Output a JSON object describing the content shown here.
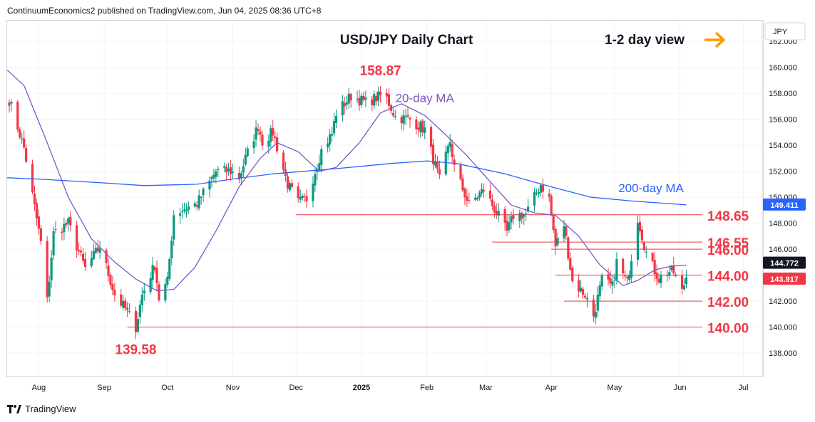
{
  "publisher_line": "ContinuumEconomics2 published on TradingView.com, Jun 04, 2025 08:36 UTC+8",
  "brand": {
    "label": "TradingView",
    "icon": "tradingview-logo-icon"
  },
  "colors": {
    "up": "#089981",
    "down": "#f23645",
    "ma20": "#7e57c2",
    "ma200": "#2962ff",
    "level_line": "#f23645",
    "level_text": "#f23645",
    "arrow": "#ff9800",
    "grid": "#f0f3fa",
    "axis_border": "#d1d4dc",
    "price_tag_dark": "#131722"
  },
  "chart_data": {
    "type": "candlestick",
    "title": "USD/JPY Daily Chart",
    "view_label": "1-2 day view",
    "view_icon": "arrow-right-icon",
    "currency": "JPY",
    "ylim": [
      136.2,
      163.6
    ],
    "y_ticks": [
      "138.000",
      "140.000",
      "142.000",
      "144.000",
      "146.000",
      "148.000",
      "150.000",
      "152.000",
      "154.000",
      "156.000",
      "158.000",
      "160.000",
      "162.000"
    ],
    "x_ticks": [
      {
        "label": "Aug",
        "date": "2024-08-01"
      },
      {
        "label": "Sep",
        "date": "2024-09-01"
      },
      {
        "label": "Oct",
        "date": "2024-10-01"
      },
      {
        "label": "Nov",
        "date": "2024-11-01"
      },
      {
        "label": "Dec",
        "date": "2024-12-01"
      },
      {
        "label": "2025",
        "date": "2025-01-01"
      },
      {
        "label": "Feb",
        "date": "2025-02-01"
      },
      {
        "label": "Mar",
        "date": "2025-03-01"
      },
      {
        "label": "Apr",
        "date": "2025-04-01"
      },
      {
        "label": "May",
        "date": "2025-05-01"
      },
      {
        "label": "Jun",
        "date": "2025-06-01"
      },
      {
        "label": "Jul",
        "date": "2025-07-01"
      }
    ],
    "xlim": [
      "2024-07-17",
      "2025-07-10"
    ],
    "anchors": [
      [
        "2024-07-18",
        157.5
      ],
      [
        "2024-07-25",
        153.8
      ],
      [
        "2024-08-02",
        146.5
      ],
      [
        "2024-08-05",
        142.0
      ],
      [
        "2024-08-08",
        147.2
      ],
      [
        "2024-08-15",
        148.0
      ],
      [
        "2024-08-23",
        144.5
      ],
      [
        "2024-08-30",
        146.2
      ],
      [
        "2024-09-06",
        142.5
      ],
      [
        "2024-09-11",
        141.4
      ],
      [
        "2024-09-16",
        140.0
      ],
      [
        "2024-09-19",
        142.5
      ],
      [
        "2024-09-25",
        144.8
      ],
      [
        "2024-09-27",
        142.2
      ],
      [
        "2024-10-01",
        143.5
      ],
      [
        "2024-10-04",
        148.7
      ],
      [
        "2024-10-10",
        149.2
      ],
      [
        "2024-10-15",
        149.5
      ],
      [
        "2024-10-24",
        152.0
      ],
      [
        "2024-10-31",
        152.0
      ],
      [
        "2024-11-04",
        151.5
      ],
      [
        "2024-11-07",
        153.0
      ],
      [
        "2024-11-13",
        155.5
      ],
      [
        "2024-11-15",
        154.3
      ],
      [
        "2024-11-20",
        155.0
      ],
      [
        "2024-11-27",
        151.0
      ],
      [
        "2024-12-02",
        149.6
      ],
      [
        "2024-12-06",
        149.9
      ],
      [
        "2024-12-13",
        153.6
      ],
      [
        "2024-12-18",
        154.9
      ],
      [
        "2024-12-20",
        156.5
      ],
      [
        "2024-12-27",
        157.8
      ],
      [
        "2025-01-03",
        157.3
      ],
      [
        "2025-01-10",
        157.8
      ],
      [
        "2025-01-13",
        157.6
      ],
      [
        "2025-01-17",
        156.2
      ],
      [
        "2025-01-24",
        156.0
      ],
      [
        "2025-01-31",
        155.2
      ],
      [
        "2025-02-07",
        151.3
      ],
      [
        "2025-02-12",
        154.3
      ],
      [
        "2025-02-14",
        152.3
      ],
      [
        "2025-02-21",
        149.4
      ],
      [
        "2025-02-28",
        150.6
      ],
      [
        "2025-03-04",
        149.4
      ],
      [
        "2025-03-11",
        147.3
      ],
      [
        "2025-03-14",
        148.6
      ],
      [
        "2025-03-20",
        148.7
      ],
      [
        "2025-03-27",
        151.0
      ],
      [
        "2025-03-31",
        149.9
      ],
      [
        "2025-04-03",
        146.2
      ],
      [
        "2025-04-07",
        147.9
      ],
      [
        "2025-04-11",
        143.5
      ],
      [
        "2025-04-17",
        142.5
      ],
      [
        "2025-04-21",
        140.9
      ],
      [
        "2025-04-25",
        143.6
      ],
      [
        "2025-04-30",
        143.1
      ],
      [
        "2025-05-02",
        145.0
      ],
      [
        "2025-05-07",
        143.4
      ],
      [
        "2025-05-12",
        148.4
      ],
      [
        "2025-05-16",
        145.7
      ],
      [
        "2025-05-22",
        143.7
      ],
      [
        "2025-05-27",
        144.3
      ],
      [
        "2025-05-29",
        144.2
      ],
      [
        "2025-06-02",
        142.7
      ],
      [
        "2025-06-04",
        143.9
      ]
    ],
    "levels": [
      {
        "label": "148.65",
        "value": 148.65,
        "from": "2024-12-01"
      },
      {
        "label": "146.55",
        "value": 146.55,
        "from": "2025-03-04"
      },
      {
        "label": "146.00",
        "value": 146.0,
        "from": "2025-04-01"
      },
      {
        "label": "144.00",
        "value": 144.0,
        "from": "2025-04-03"
      },
      {
        "label": "142.00",
        "value": 142.0,
        "from": "2025-04-07"
      },
      {
        "label": "140.00",
        "value": 140.0,
        "from": "2024-09-12"
      }
    ],
    "annotations": [
      {
        "text": "158.87",
        "date": "2025-01-10",
        "value": 158.87,
        "role": "high"
      },
      {
        "text": "139.58",
        "date": "2024-09-16",
        "value": 139.58,
        "role": "low"
      },
      {
        "text": "20-day MA",
        "date": "2025-01-31",
        "value": 157.0,
        "role": "ma20-label"
      },
      {
        "text": "200-day MA",
        "date": "2025-04-28",
        "value": 150.4,
        "role": "ma200-label"
      }
    ],
    "series": [
      {
        "name": "20-day MA",
        "type": "line",
        "color": "#7e57c2",
        "last": "144.772",
        "points": [
          [
            "2024-07-17",
            159.8
          ],
          [
            "2024-07-25",
            158.6
          ],
          [
            "2024-08-05",
            154.2
          ],
          [
            "2024-08-15",
            150.0
          ],
          [
            "2024-08-26",
            146.8
          ],
          [
            "2024-09-06",
            145.0
          ],
          [
            "2024-09-16",
            143.7
          ],
          [
            "2024-09-26",
            142.8
          ],
          [
            "2024-10-04",
            142.9
          ],
          [
            "2024-10-14",
            144.6
          ],
          [
            "2024-10-24",
            147.4
          ],
          [
            "2024-11-04",
            150.8
          ],
          [
            "2024-11-14",
            153.0
          ],
          [
            "2024-11-22",
            154.2
          ],
          [
            "2024-12-02",
            153.5
          ],
          [
            "2024-12-12",
            152.0
          ],
          [
            "2024-12-20",
            152.3
          ],
          [
            "2024-12-31",
            154.2
          ],
          [
            "2025-01-10",
            156.5
          ],
          [
            "2025-01-20",
            157.2
          ],
          [
            "2025-01-31",
            156.3
          ],
          [
            "2025-02-10",
            154.8
          ],
          [
            "2025-02-20",
            153.2
          ],
          [
            "2025-03-03",
            151.2
          ],
          [
            "2025-03-13",
            149.4
          ],
          [
            "2025-03-24",
            148.8
          ],
          [
            "2025-04-03",
            148.6
          ],
          [
            "2025-04-14",
            147.0
          ],
          [
            "2025-04-24",
            144.8
          ],
          [
            "2025-05-05",
            143.2
          ],
          [
            "2025-05-12",
            143.6
          ],
          [
            "2025-05-20",
            144.4
          ],
          [
            "2025-05-28",
            144.7
          ],
          [
            "2025-06-04",
            144.77
          ]
        ]
      },
      {
        "name": "200-day MA",
        "type": "line",
        "color": "#2962ff",
        "last": "149.411",
        "points": [
          [
            "2024-07-17",
            151.5
          ],
          [
            "2024-08-01",
            151.4
          ],
          [
            "2024-09-01",
            151.1
          ],
          [
            "2024-09-20",
            150.9
          ],
          [
            "2024-10-15",
            151.0
          ],
          [
            "2024-11-01",
            151.4
          ],
          [
            "2024-11-20",
            151.8
          ],
          [
            "2024-12-20",
            152.2
          ],
          [
            "2025-01-15",
            152.6
          ],
          [
            "2025-02-01",
            152.8
          ],
          [
            "2025-02-15",
            152.6
          ],
          [
            "2025-03-10",
            151.8
          ],
          [
            "2025-04-01",
            150.8
          ],
          [
            "2025-04-20",
            150.0
          ],
          [
            "2025-05-10",
            149.7
          ],
          [
            "2025-06-04",
            149.41
          ]
        ]
      },
      {
        "name": "USD/JPY",
        "type": "price",
        "last": "143.917"
      }
    ]
  }
}
